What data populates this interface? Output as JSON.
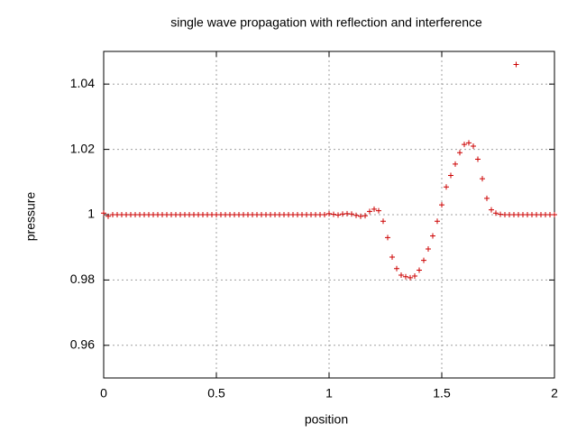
{
  "chart_data": {
    "type": "scatter",
    "title": "single wave propagation with reflection and interference",
    "x_label": "position",
    "y_label": "pressure",
    "color": "#cc0000",
    "x": [
      0,
      0.02,
      0.04,
      0.06,
      0.08,
      0.1,
      0.12,
      0.14,
      0.16,
      0.18,
      0.2,
      0.22,
      0.24,
      0.26,
      0.28,
      0.3,
      0.32,
      0.34,
      0.36,
      0.38,
      0.4,
      0.42,
      0.44,
      0.46,
      0.48,
      0.5,
      0.52,
      0.54,
      0.56,
      0.58,
      0.6,
      0.62,
      0.64,
      0.66,
      0.68,
      0.7,
      0.72,
      0.74,
      0.76,
      0.78,
      0.8,
      0.82,
      0.84,
      0.86,
      0.88,
      0.9,
      0.92,
      0.94,
      0.96,
      0.98,
      1,
      1.02,
      1.04,
      1.06,
      1.08,
      1.1,
      1.12,
      1.14,
      1.16,
      1.18,
      1.2,
      1.22,
      1.24,
      1.26,
      1.28,
      1.3,
      1.32,
      1.34,
      1.36,
      1.38,
      1.4,
      1.42,
      1.44,
      1.46,
      1.48,
      1.5,
      1.52,
      1.54,
      1.56,
      1.58,
      1.6,
      1.62,
      1.64,
      1.66,
      1.68,
      1.7,
      1.72,
      1.74,
      1.76,
      1.78,
      1.8,
      1.82,
      1.83,
      1.84,
      1.86,
      1.88,
      1.9,
      1.92,
      1.94,
      1.96,
      1.98,
      2
    ],
    "values": [
      1.0005,
      0.9995,
      1,
      1,
      1,
      1,
      1,
      1,
      1,
      1,
      1,
      1,
      1,
      1,
      1,
      1,
      1,
      1,
      1,
      1,
      1,
      1,
      1,
      1,
      1,
      1,
      1,
      1,
      1,
      1,
      1,
      1,
      1,
      1,
      1,
      1,
      1,
      1,
      1,
      1,
      1,
      1,
      1,
      1,
      1,
      1,
      1,
      1,
      1,
      1,
      1.0003,
      1.0001,
      0.9999,
      1.0002,
      1.0003,
      1.0002,
      0.9998,
      0.9995,
      0.9997,
      1.001,
      1.0017,
      1.0012,
      0.998,
      0.993,
      0.987,
      0.9835,
      0.9815,
      0.981,
      0.9807,
      0.9812,
      0.983,
      0.986,
      0.9895,
      0.9935,
      0.998,
      1.003,
      1.0085,
      1.012,
      1.0155,
      1.019,
      1.0215,
      1.022,
      1.021,
      1.017,
      1.011,
      1.005,
      1.0015,
      1.0005,
      1.0001,
      1,
      1,
      1,
      1.046,
      1,
      1,
      1,
      1,
      1,
      1,
      1,
      1,
      1
    ],
    "xlim": [
      0,
      2
    ],
    "xticks": [
      0,
      0.5,
      1,
      1.5,
      2
    ],
    "ylim": [
      0.95,
      1.05
    ],
    "yticks": [
      0.96,
      0.98,
      1,
      1.02,
      1.04
    ],
    "grid": true
  }
}
